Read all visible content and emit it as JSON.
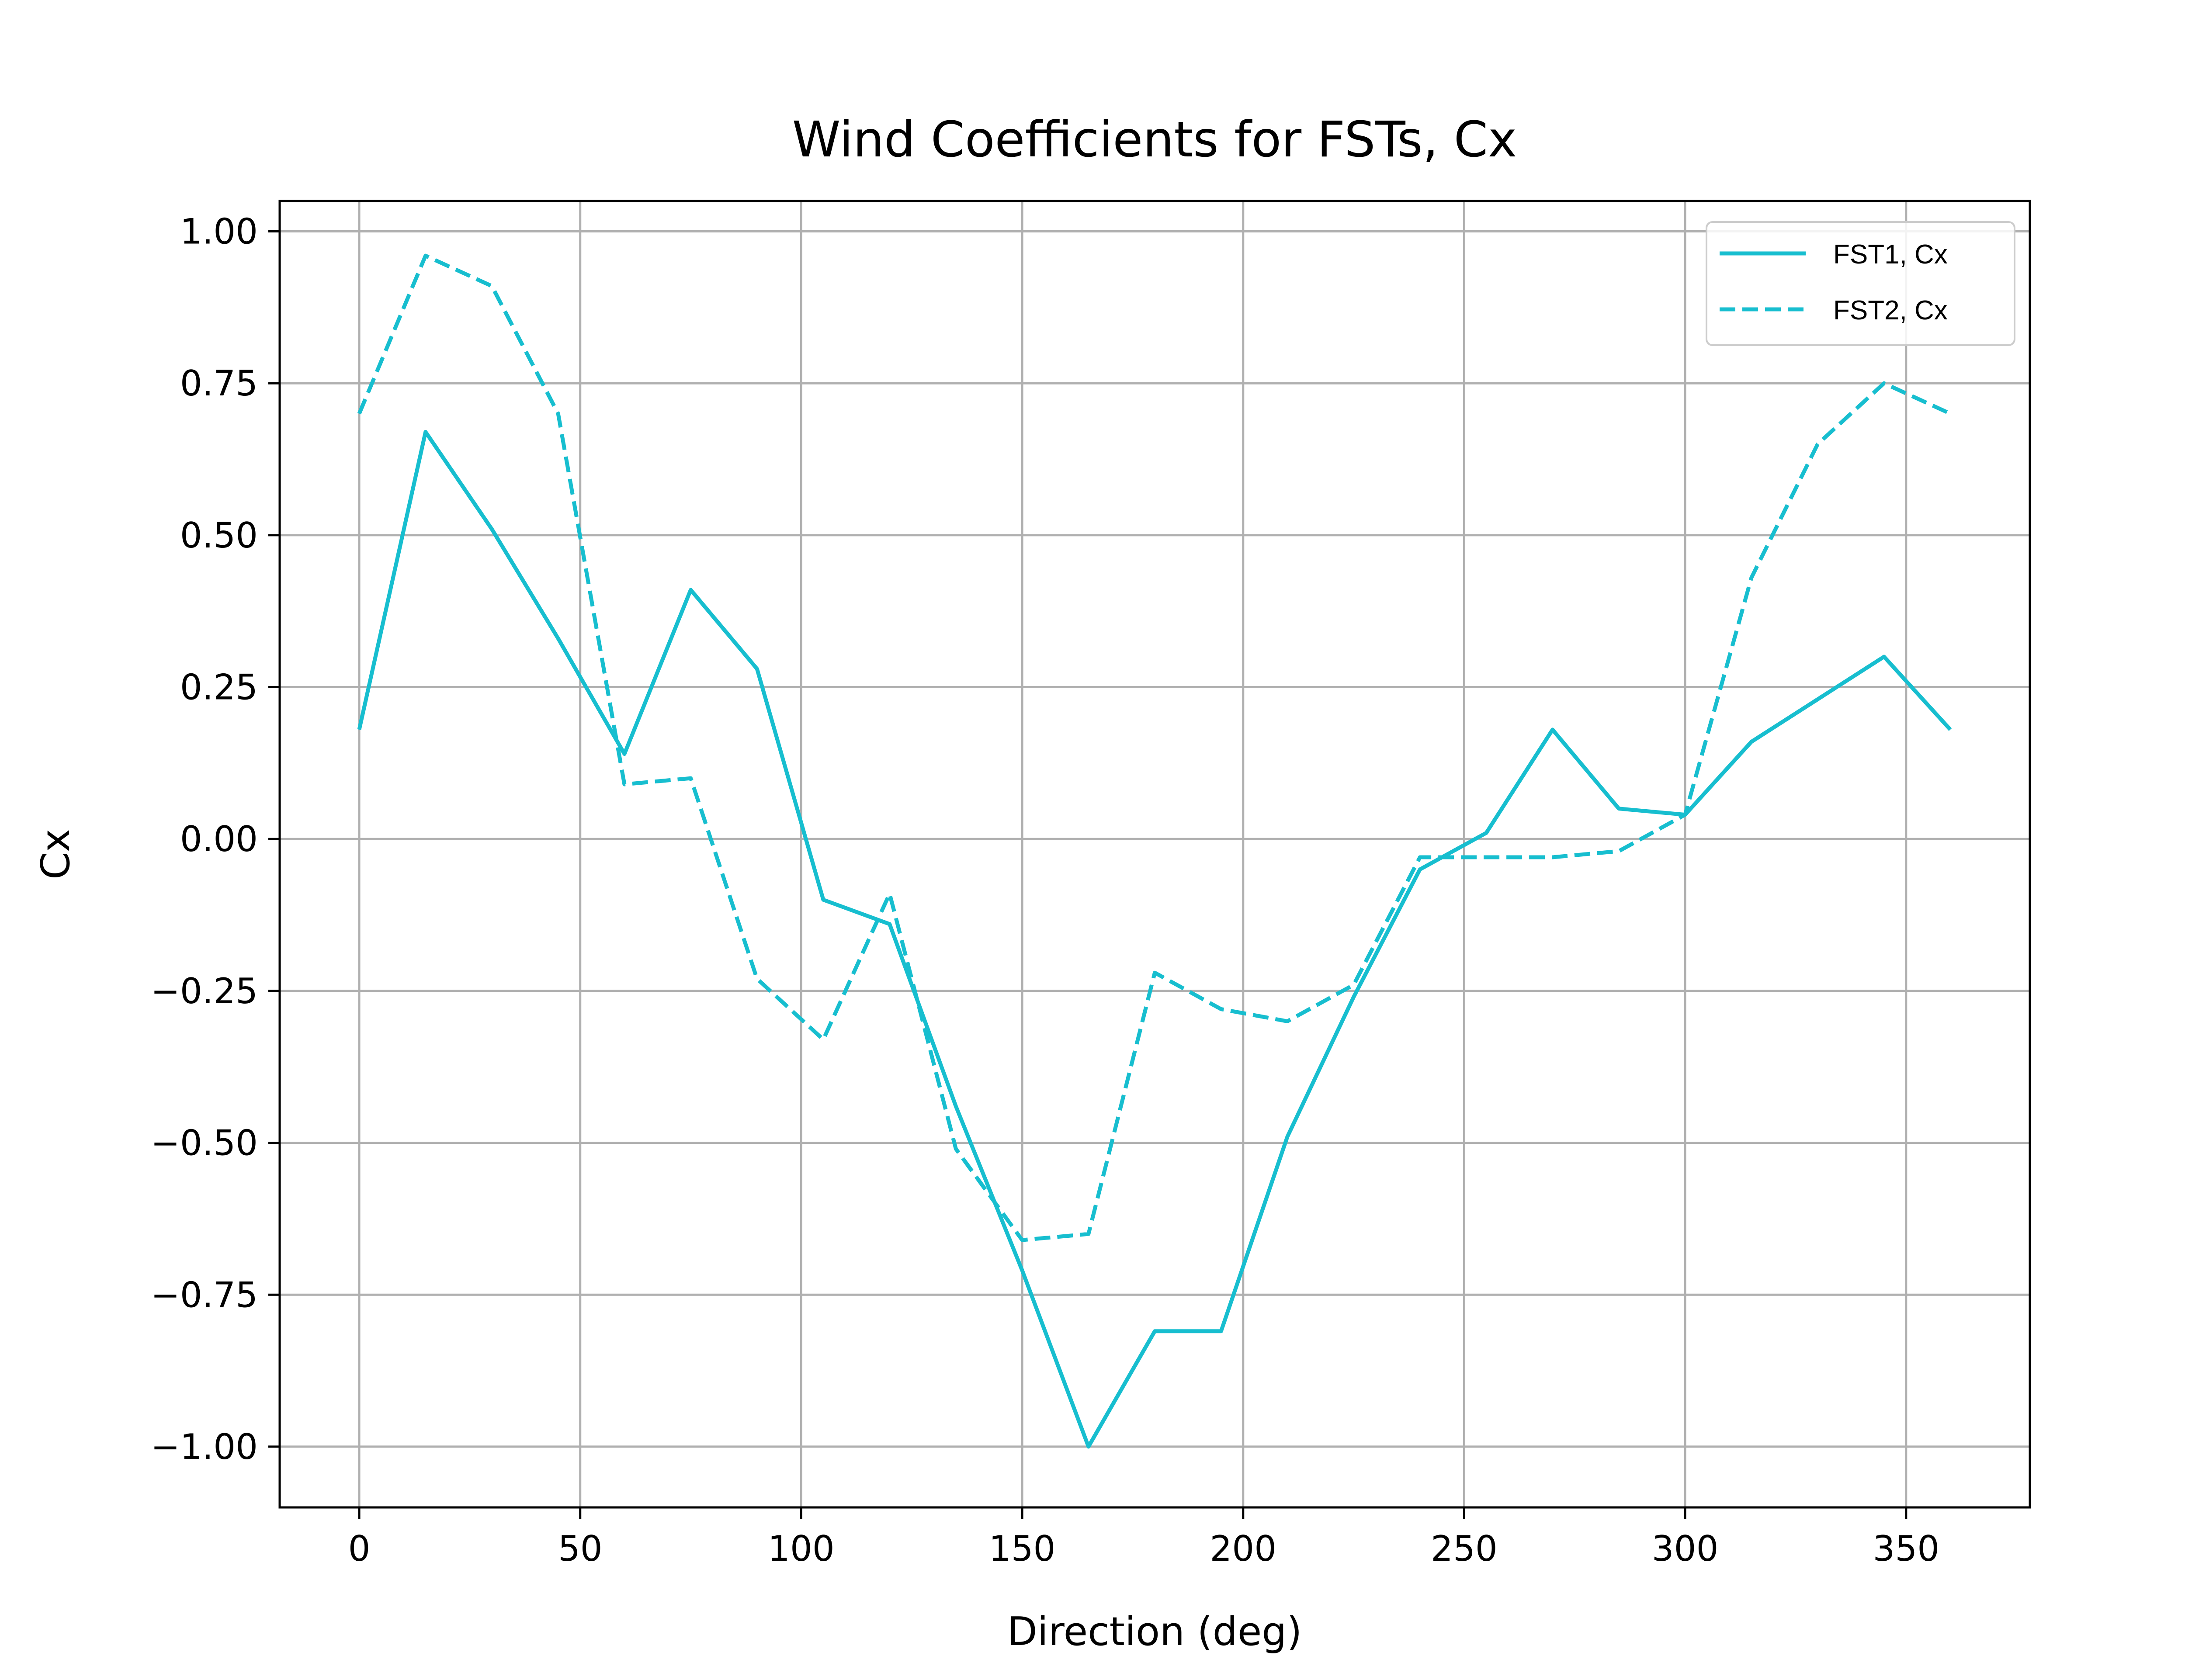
{
  "chart_data": {
    "type": "line",
    "title": "Wind Coefficients for FSTs, Cx",
    "xlabel": "Direction (deg)",
    "ylabel": "Cx",
    "xlim": [
      -18,
      378
    ],
    "ylim": [
      -1.1,
      1.05
    ],
    "xticks": [
      0,
      50,
      100,
      150,
      200,
      250,
      300,
      350
    ],
    "xtick_labels": [
      "0",
      "50",
      "100",
      "150",
      "200",
      "250",
      "300",
      "350"
    ],
    "yticks": [
      1.0,
      0.75,
      0.5,
      0.25,
      0.0,
      -0.25,
      -0.5,
      -0.75,
      -1.0
    ],
    "ytick_labels": [
      "1.00",
      "0.75",
      "0.50",
      "0.25",
      "0.00",
      "−0.25",
      "−0.50",
      "−0.75",
      "−1.00"
    ],
    "grid": true,
    "legend_position": "top-right",
    "series": [
      {
        "name": "FST1, Cx",
        "color": "#17becf",
        "style": "solid",
        "x": [
          0,
          15,
          30,
          45,
          60,
          75,
          90,
          105,
          120,
          135,
          150,
          165,
          180,
          195,
          210,
          225,
          240,
          255,
          270,
          285,
          300,
          315,
          330,
          345,
          360
        ],
        "y": [
          0.18,
          0.67,
          0.51,
          0.33,
          0.14,
          0.41,
          0.28,
          -0.1,
          -0.14,
          -0.44,
          -0.71,
          -1.0,
          -0.81,
          -0.81,
          -0.49,
          -0.26,
          -0.05,
          0.01,
          0.18,
          0.05,
          0.04,
          0.16,
          0.23,
          0.3,
          0.18
        ]
      },
      {
        "name": "FST2, Cx",
        "color": "#17becf",
        "style": "dashed",
        "x": [
          0,
          15,
          30,
          45,
          60,
          75,
          90,
          105,
          120,
          135,
          150,
          165,
          180,
          195,
          210,
          225,
          240,
          255,
          270,
          285,
          300,
          315,
          330,
          345,
          360
        ],
        "y": [
          0.7,
          0.96,
          0.91,
          0.7,
          0.09,
          0.1,
          -0.23,
          -0.33,
          -0.09,
          -0.51,
          -0.66,
          -0.65,
          -0.22,
          -0.28,
          -0.3,
          -0.24,
          -0.03,
          -0.03,
          -0.03,
          -0.02,
          0.04,
          0.43,
          0.65,
          0.75,
          0.7
        ]
      }
    ]
  }
}
